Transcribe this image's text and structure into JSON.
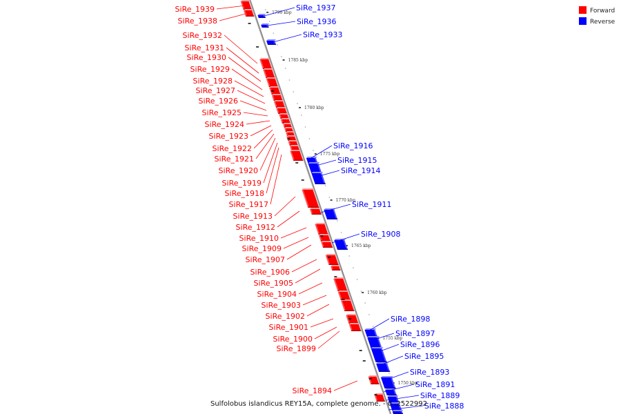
{
  "caption": "Sulfolobus islandicus REY15A, complete genome. - 0..2522992",
  "legend": {
    "forward_label": "Forward",
    "reverse_label": "Reverse",
    "forward_color": "#ff0000",
    "reverse_color": "#0000ff"
  },
  "ticks": [
    "1790 kbp",
    "1785 kbp",
    "1780 kbp",
    "1775 kbp",
    "1770 kbp",
    "1765 kbp",
    "1760 kbp",
    "1755 kbp",
    "1750 kbp"
  ],
  "genes": [
    {
      "label": "SiRe_1939",
      "strand": "forward"
    },
    {
      "label": "SiRe_1938",
      "strand": "forward"
    },
    {
      "label": "SiRe_1937",
      "strand": "reverse"
    },
    {
      "label": "SiRe_1936",
      "strand": "reverse"
    },
    {
      "label": "SiRe_1933",
      "strand": "reverse"
    },
    {
      "label": "SiRe_1932",
      "strand": "forward"
    },
    {
      "label": "SiRe_1931",
      "strand": "forward"
    },
    {
      "label": "SiRe_1930",
      "strand": "forward"
    },
    {
      "label": "SiRe_1929",
      "strand": "forward"
    },
    {
      "label": "SiRe_1928",
      "strand": "forward"
    },
    {
      "label": "SiRe_1927",
      "strand": "forward"
    },
    {
      "label": "SiRe_1926",
      "strand": "forward"
    },
    {
      "label": "SiRe_1925",
      "strand": "forward"
    },
    {
      "label": "SiRe_1924",
      "strand": "forward"
    },
    {
      "label": "SiRe_1923",
      "strand": "forward"
    },
    {
      "label": "SiRe_1922",
      "strand": "forward"
    },
    {
      "label": "SiRe_1921",
      "strand": "forward"
    },
    {
      "label": "SiRe_1920",
      "strand": "forward"
    },
    {
      "label": "SiRe_1919",
      "strand": "forward"
    },
    {
      "label": "SiRe_1918",
      "strand": "forward"
    },
    {
      "label": "SiRe_1917",
      "strand": "forward"
    },
    {
      "label": "SiRe_1916",
      "strand": "reverse"
    },
    {
      "label": "SiRe_1915",
      "strand": "reverse"
    },
    {
      "label": "SiRe_1914",
      "strand": "reverse"
    },
    {
      "label": "SiRe_1913",
      "strand": "forward"
    },
    {
      "label": "SiRe_1912",
      "strand": "forward"
    },
    {
      "label": "SiRe_1911",
      "strand": "reverse"
    },
    {
      "label": "SiRe_1910",
      "strand": "forward"
    },
    {
      "label": "SiRe_1909",
      "strand": "forward"
    },
    {
      "label": "SiRe_1908",
      "strand": "reverse"
    },
    {
      "label": "SiRe_1907",
      "strand": "forward"
    },
    {
      "label": "SiRe_1906",
      "strand": "forward"
    },
    {
      "label": "SiRe_1905",
      "strand": "forward"
    },
    {
      "label": "SiRe_1904",
      "strand": "forward"
    },
    {
      "label": "SiRe_1903",
      "strand": "forward"
    },
    {
      "label": "SiRe_1902",
      "strand": "forward"
    },
    {
      "label": "SiRe_1901",
      "strand": "forward"
    },
    {
      "label": "SiRe_1900",
      "strand": "forward"
    },
    {
      "label": "SiRe_1899",
      "strand": "forward"
    },
    {
      "label": "SiRe_1898",
      "strand": "reverse"
    },
    {
      "label": "SiRe_1897",
      "strand": "reverse"
    },
    {
      "label": "SiRe_1896",
      "strand": "reverse"
    },
    {
      "label": "SiRe_1895",
      "strand": "reverse"
    },
    {
      "label": "SiRe_1894",
      "strand": "forward"
    },
    {
      "label": "SiRe_1893",
      "strand": "reverse"
    },
    {
      "label": "SiRe_1891",
      "strand": "reverse"
    },
    {
      "label": "SiRe_1889",
      "strand": "reverse"
    },
    {
      "label": "SiRe_1888",
      "strand": "reverse"
    }
  ]
}
